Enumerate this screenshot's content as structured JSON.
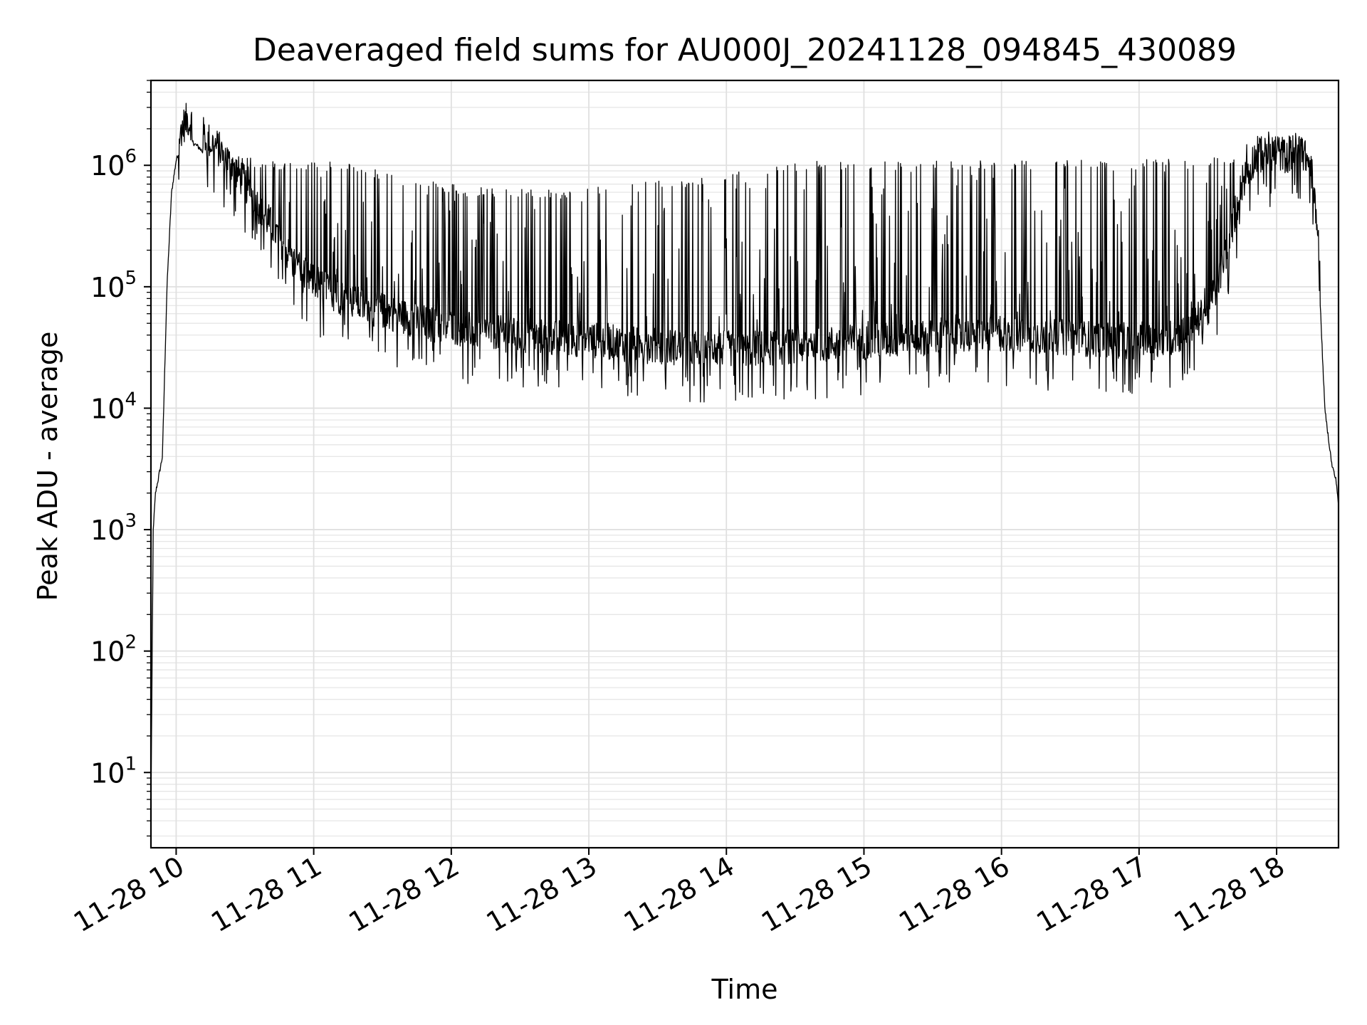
{
  "chart_data": {
    "type": "line",
    "title": "Deaveraged field sums for AU000J_20241128_094845_430089",
    "xlabel": "Time",
    "ylabel": "Peak ADU - average",
    "y_scale": "log",
    "ylim": [
      2.4,
      5000000
    ],
    "xlim": [
      "2024-11-28 09:49",
      "2024-11-28 18:27"
    ],
    "grid": true,
    "x_ticks": [
      {
        "t": "2024-11-28 10:00",
        "label": "11-28 10"
      },
      {
        "t": "2024-11-28 11:00",
        "label": "11-28 11"
      },
      {
        "t": "2024-11-28 12:00",
        "label": "11-28 12"
      },
      {
        "t": "2024-11-28 13:00",
        "label": "11-28 13"
      },
      {
        "t": "2024-11-28 14:00",
        "label": "11-28 14"
      },
      {
        "t": "2024-11-28 15:00",
        "label": "11-28 15"
      },
      {
        "t": "2024-11-28 16:00",
        "label": "11-28 16"
      },
      {
        "t": "2024-11-28 17:00",
        "label": "11-28 17"
      },
      {
        "t": "2024-11-28 18:00",
        "label": "11-28 18"
      }
    ],
    "y_ticks": [
      {
        "value": 10,
        "base": "10",
        "exp": "1"
      },
      {
        "value": 100,
        "base": "10",
        "exp": "2"
      },
      {
        "value": 1000,
        "base": "10",
        "exp": "3"
      },
      {
        "value": 10000,
        "base": "10",
        "exp": "4"
      },
      {
        "value": 100000,
        "base": "10",
        "exp": "5"
      },
      {
        "value": 1000000,
        "base": "10",
        "exp": "6"
      }
    ],
    "series": [
      {
        "color": "#000000",
        "x": [
          "2024-11-28 09:49",
          "2024-11-28 09:50",
          "2024-11-28 09:51",
          "2024-11-28 09:52",
          "2024-11-28 09:54",
          "2024-11-28 09:56",
          "2024-11-28 09:58",
          "2024-11-28 10:00",
          "2024-11-28 10:02",
          "2024-11-28 10:05",
          "2024-11-28 10:08",
          "2024-11-28 10:10",
          "2024-11-28 10:13",
          "2024-11-28 10:15",
          "2024-11-28 10:18",
          "2024-11-28 10:20",
          "2024-11-28 10:25",
          "2024-11-28 10:30",
          "2024-11-28 10:35",
          "2024-11-28 10:40",
          "2024-11-28 10:45",
          "2024-11-28 10:50",
          "2024-11-28 10:55",
          "2024-11-28 11:00",
          "2024-11-28 11:10",
          "2024-11-28 11:20",
          "2024-11-28 11:30",
          "2024-11-28 11:40",
          "2024-11-28 11:50",
          "2024-11-28 12:00",
          "2024-11-28 12:15",
          "2024-11-28 12:30",
          "2024-11-28 12:45",
          "2024-11-28 13:00",
          "2024-11-28 13:15",
          "2024-11-28 13:30",
          "2024-11-28 13:45",
          "2024-11-28 14:00",
          "2024-11-28 14:15",
          "2024-11-28 14:30",
          "2024-11-28 14:45",
          "2024-11-28 15:00",
          "2024-11-28 15:15",
          "2024-11-28 15:30",
          "2024-11-28 15:45",
          "2024-11-28 16:00",
          "2024-11-28 16:15",
          "2024-11-28 16:30",
          "2024-11-28 16:45",
          "2024-11-28 17:00",
          "2024-11-28 17:10",
          "2024-11-28 17:20",
          "2024-11-28 17:30",
          "2024-11-28 17:35",
          "2024-11-28 17:40",
          "2024-11-28 17:45",
          "2024-11-28 17:50",
          "2024-11-28 17:55",
          "2024-11-28 18:00",
          "2024-11-28 18:05",
          "2024-11-28 18:08",
          "2024-11-28 18:12",
          "2024-11-28 18:15",
          "2024-11-28 18:18",
          "2024-11-28 18:21",
          "2024-11-28 18:24",
          "2024-11-28 18:26",
          "2024-11-28 18:27"
        ],
        "base": [
          5,
          1000,
          2000,
          2500,
          4000,
          100000,
          600000,
          1100000,
          1400000,
          1700000,
          1500000,
          1400000,
          1200000,
          1100000,
          1000000,
          900000,
          700000,
          500000,
          350000,
          250000,
          180000,
          120000,
          90000,
          80000,
          60000,
          50000,
          45000,
          40000,
          35000,
          33000,
          30000,
          28000,
          27000,
          26000,
          24000,
          23000,
          22000,
          22000,
          22000,
          23000,
          24000,
          25000,
          26000,
          27000,
          28000,
          29000,
          28000,
          27000,
          26000,
          25000,
          25000,
          30000,
          45000,
          80000,
          200000,
          500000,
          800000,
          900000,
          900000,
          850000,
          950000,
          900000,
          700000,
          200000,
          10000,
          3500,
          2500,
          1600
        ],
        "peak": [
          5,
          1000,
          2000,
          2600,
          4500,
          110000,
          650000,
          1300000,
          2000000,
          2600000,
          1800000,
          1700000,
          1700000,
          1600000,
          1400000,
          1300000,
          1200000,
          1150000,
          1150000,
          1100000,
          1100000,
          1100000,
          1100000,
          1100000,
          1050000,
          1000000,
          900000,
          800000,
          750000,
          700000,
          650000,
          650000,
          640000,
          650000,
          700000,
          750000,
          800000,
          900000,
          1000000,
          1050000,
          1100000,
          1100000,
          1100000,
          1100000,
          1100000,
          1100000,
          1100000,
          1100000,
          1100000,
          1100000,
          1150000,
          1150000,
          1200000,
          1200000,
          1200000,
          1500000,
          1800000,
          2000000,
          1900000,
          1800000,
          2000000,
          1700000,
          1200000,
          300000,
          10000,
          3600,
          2600,
          1600
        ]
      }
    ]
  }
}
